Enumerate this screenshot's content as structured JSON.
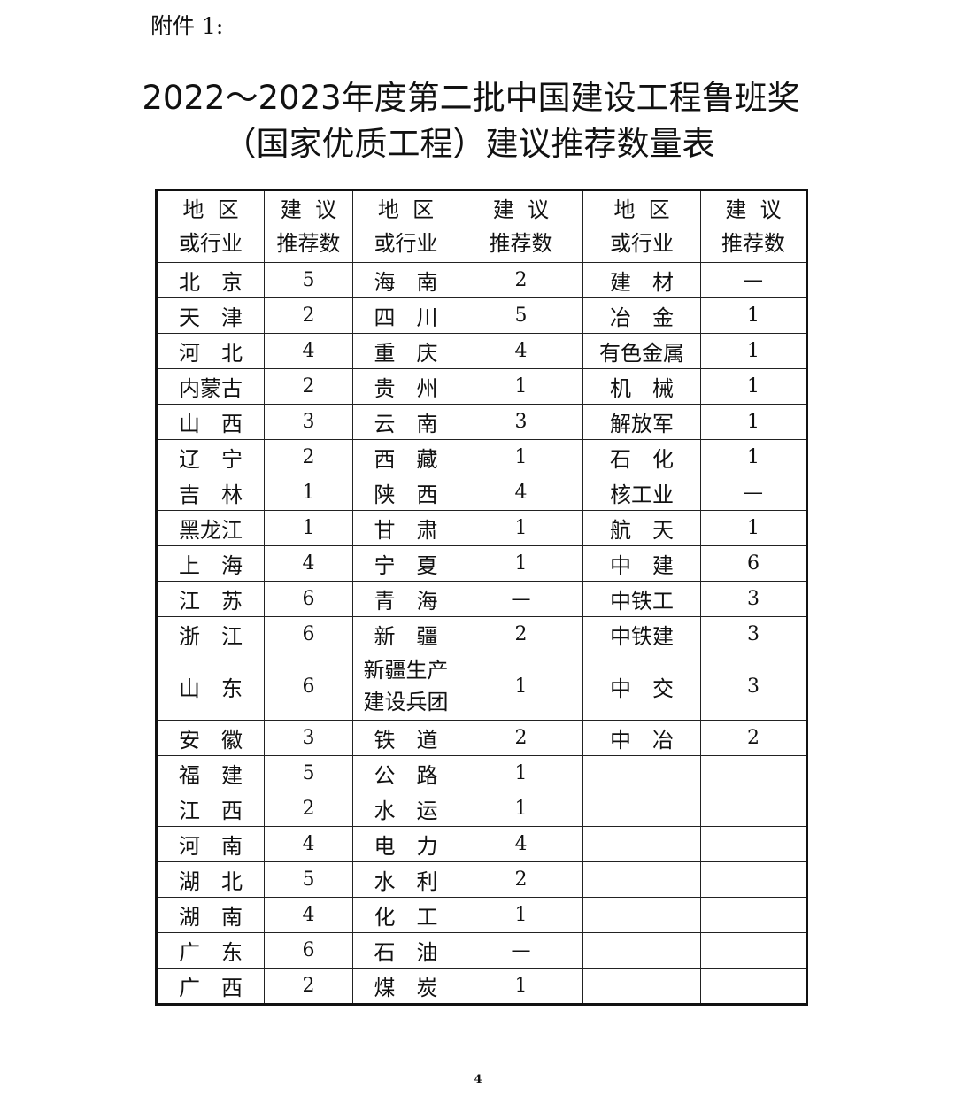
{
  "attachment_label": "附件 1:",
  "title_line1": "2022～2023年度第二批中国建设工程鲁班奖",
  "title_line2": "（国家优质工程）建议推荐数量表",
  "table": {
    "headers": [
      [
        "地  区",
        "或行业"
      ],
      [
        "建  议",
        "推荐数"
      ],
      [
        "地  区",
        "或行业"
      ],
      [
        "建  议",
        "推荐数"
      ],
      [
        "地  区",
        "或行业"
      ],
      [
        "建  议",
        "推荐数"
      ]
    ],
    "rows": [
      [
        [
          "北京"
        ],
        "5",
        [
          "海南"
        ],
        "2",
        [
          "建材"
        ],
        "—"
      ],
      [
        [
          "天津"
        ],
        "2",
        [
          "四川"
        ],
        "5",
        [
          "冶金"
        ],
        "1"
      ],
      [
        [
          "河北"
        ],
        "4",
        [
          "重庆"
        ],
        "4",
        [
          "有色金属"
        ],
        "1"
      ],
      [
        [
          "内蒙古"
        ],
        "2",
        [
          "贵州"
        ],
        "1",
        [
          "机械"
        ],
        "1"
      ],
      [
        [
          "山西"
        ],
        "3",
        [
          "云南"
        ],
        "3",
        [
          "解放军"
        ],
        "1"
      ],
      [
        [
          "辽宁"
        ],
        "2",
        [
          "西藏"
        ],
        "1",
        [
          "石化"
        ],
        "1"
      ],
      [
        [
          "吉林"
        ],
        "1",
        [
          "陕西"
        ],
        "4",
        [
          "核工业"
        ],
        "—"
      ],
      [
        [
          "黑龙江"
        ],
        "1",
        [
          "甘肃"
        ],
        "1",
        [
          "航天"
        ],
        "1"
      ],
      [
        [
          "上海"
        ],
        "4",
        [
          "宁夏"
        ],
        "1",
        [
          "中建"
        ],
        "6"
      ],
      [
        [
          "江苏"
        ],
        "6",
        [
          "青海"
        ],
        "—",
        [
          "中铁工"
        ],
        "3"
      ],
      [
        [
          "浙江"
        ],
        "6",
        [
          "新疆"
        ],
        "2",
        [
          "中铁建"
        ],
        "3"
      ],
      [
        [
          "山东"
        ],
        "6",
        [
          "新疆生产",
          "建设兵团"
        ],
        "1",
        [
          "中交"
        ],
        "3"
      ],
      [
        [
          "安徽"
        ],
        "3",
        [
          "铁道"
        ],
        "2",
        [
          "中冶"
        ],
        "2"
      ],
      [
        [
          "福建"
        ],
        "5",
        [
          "公路"
        ],
        "1",
        [
          ""
        ],
        ""
      ],
      [
        [
          "江西"
        ],
        "2",
        [
          "水运"
        ],
        "1",
        [
          ""
        ],
        ""
      ],
      [
        [
          "河南"
        ],
        "4",
        [
          "电力"
        ],
        "4",
        [
          ""
        ],
        ""
      ],
      [
        [
          "湖北"
        ],
        "5",
        [
          "水利"
        ],
        "2",
        [
          ""
        ],
        ""
      ],
      [
        [
          "湖南"
        ],
        "4",
        [
          "化工"
        ],
        "1",
        [
          ""
        ],
        ""
      ],
      [
        [
          "广东"
        ],
        "6",
        [
          "石油"
        ],
        "—",
        [
          ""
        ],
        ""
      ],
      [
        [
          "广西"
        ],
        "2",
        [
          "煤炭"
        ],
        "1",
        [
          ""
        ],
        ""
      ]
    ]
  },
  "page_number": "4"
}
